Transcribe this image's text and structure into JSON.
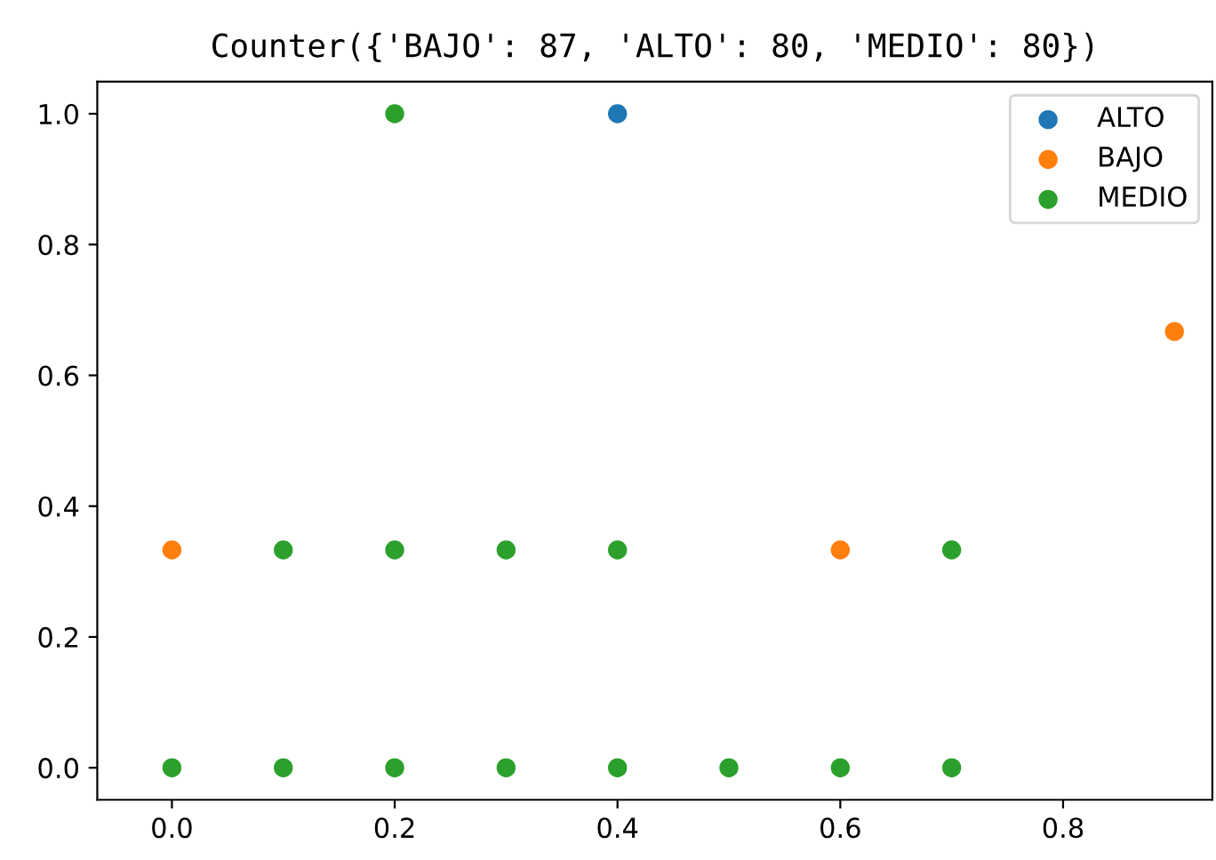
{
  "chart_data": {
    "type": "scatter",
    "title": "Counter({'BAJO': 87, 'ALTO': 80, 'MEDIO': 80})",
    "series": [
      {
        "name": "ALTO",
        "color": "#1f77b4",
        "x": [
          0.4
        ],
        "values": [
          1.0
        ]
      },
      {
        "name": "BAJO",
        "color": "#ff7f0e",
        "x": [
          0.9,
          0.0,
          0.6
        ],
        "values": [
          0.667,
          0.333,
          0.333
        ]
      },
      {
        "name": "MEDIO",
        "color": "#2ca02c",
        "x": [
          0.2,
          0.1,
          0.2,
          0.3,
          0.4,
          0.7,
          0.0,
          0.1,
          0.2,
          0.3,
          0.4,
          0.5,
          0.6,
          0.7
        ],
        "values": [
          1.0,
          0.333,
          0.333,
          0.333,
          0.333,
          0.333,
          0.0,
          0.0,
          0.0,
          0.0,
          0.0,
          0.0,
          0.0,
          0.0
        ]
      }
    ],
    "xlim": [
      -0.067,
      0.934
    ],
    "ylim": [
      -0.049,
      1.049
    ],
    "xticks": [
      {
        "value": 0.0,
        "label": "0.0"
      },
      {
        "value": 0.2,
        "label": "0.2"
      },
      {
        "value": 0.4,
        "label": "0.4"
      },
      {
        "value": 0.6,
        "label": "0.6"
      },
      {
        "value": 0.8,
        "label": "0.8"
      }
    ],
    "yticks": [
      {
        "value": 0.0,
        "label": "0.0"
      },
      {
        "value": 0.2,
        "label": "0.2"
      },
      {
        "value": 0.4,
        "label": "0.4"
      },
      {
        "value": 0.6,
        "label": "0.6"
      },
      {
        "value": 0.8,
        "label": "0.8"
      },
      {
        "value": 1.0,
        "label": "1.0"
      }
    ],
    "marker": "circle",
    "legend": "top right",
    "grid": false
  }
}
